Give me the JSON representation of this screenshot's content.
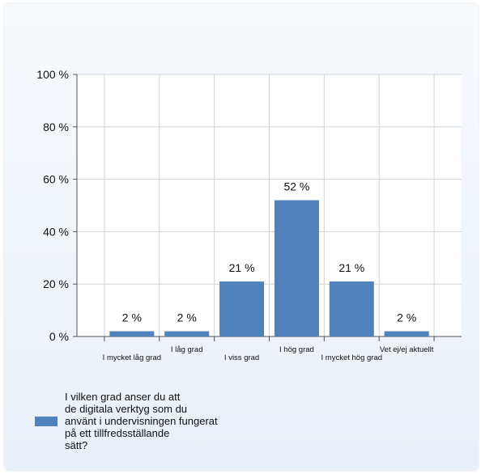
{
  "chart_data": {
    "type": "bar",
    "categories": [
      "I mycket låg grad",
      "I låg grad",
      "I viss grad",
      "I hög grad",
      "I mycket hög grad",
      "Vet ej/ej aktuellt"
    ],
    "series": [
      {
        "name": "I vilken grad anser du att de digitala verktyg som du använt i undervisningen fungerat på ett tillfredsställande sätt?",
        "values": [
          2,
          2,
          21,
          52,
          21,
          2
        ],
        "labels": [
          "2 %",
          "2 %",
          "21 %",
          "52 %",
          "21 %",
          "2 %"
        ]
      }
    ],
    "ylim": [
      0,
      100
    ],
    "yticks": [
      "0 %",
      "20 %",
      "40 %",
      "60 %",
      "80 %",
      "100 %"
    ],
    "grid": true,
    "legend_position": "bottom-left",
    "bar_color": "#4f81bd"
  },
  "legend": {
    "lines": [
      "I vilken grad anser du att",
      "de digitala verktyg som du",
      "använt i undervisningen fungerat",
      "på ett tillfredsställande",
      "sätt?"
    ]
  }
}
